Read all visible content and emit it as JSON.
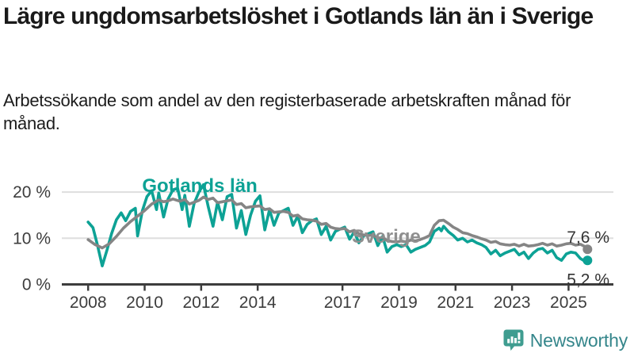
{
  "header": {
    "title": "Lägre ungdomsarbetslöshet i Gotlands län än i Sverige",
    "subtitle": "Arbetssökande som andel av den registerbaserade arbetskraften månad för månad."
  },
  "footer": {
    "brand": "Newsworthy",
    "brand_icon": "bar-chart-speech-bubble",
    "brand_icon_color": "#3f9d90",
    "brand_text_color": "#35868b"
  },
  "chart_data": {
    "type": "line",
    "title": "",
    "xlabel": "",
    "ylabel": "",
    "x_unit": "year (monthly data)",
    "y_unit": "%",
    "xlim": [
      2007.6,
      2026.3
    ],
    "ylim": [
      0,
      23
    ],
    "grid": "horizontal",
    "y_ticks": [
      {
        "value": 20,
        "label": "20 %"
      },
      {
        "value": 10,
        "label": "10 %"
      },
      {
        "value": 0,
        "label": "0 %"
      }
    ],
    "x_ticks": [
      {
        "value": 2008,
        "label": "2008"
      },
      {
        "value": 2010,
        "label": "2010"
      },
      {
        "value": 2012,
        "label": "2012"
      },
      {
        "value": 2014,
        "label": "2014"
      },
      {
        "value": 2017,
        "label": "2017"
      },
      {
        "value": 2019,
        "label": "2019"
      },
      {
        "value": 2021,
        "label": "2021"
      },
      {
        "value": 2023,
        "label": "2023"
      },
      {
        "value": 2025,
        "label": "2025"
      }
    ],
    "colors": {
      "gotland": "#0da295",
      "sverige": "#858585",
      "grid": "#dedede",
      "axis": "#3d3d3d",
      "tick_text": "#3d3d3d",
      "value_text": "#333333",
      "sverige_label": "#8f8f8f"
    },
    "annotations": [
      {
        "text": "Gotlands län",
        "x": 2011.95,
        "y": 20.0,
        "color": "#0da295",
        "bold": true
      },
      {
        "text": "Sverige",
        "x": 2018.55,
        "y": 9.0,
        "color": "#8f8f8f",
        "bold": true
      },
      {
        "text": "7,6 %",
        "x": 2026.1,
        "y": 10.2,
        "color": "#333333",
        "bold": false
      },
      {
        "text": "5,2 %",
        "x": 2026.1,
        "y": 1.0,
        "color": "#333333",
        "bold": false
      }
    ],
    "series": [
      {
        "name": "Gotlands län",
        "color": "#0da295",
        "end_label": "5,2 %",
        "end_value": 5.2,
        "points": [
          [
            2008.0,
            13.5
          ],
          [
            2008.17,
            12.3
          ],
          [
            2008.33,
            8.5
          ],
          [
            2008.5,
            4.0
          ],
          [
            2008.67,
            7.5
          ],
          [
            2008.83,
            11.0
          ],
          [
            2009.0,
            14.0
          ],
          [
            2009.17,
            15.5
          ],
          [
            2009.33,
            13.8
          ],
          [
            2009.5,
            15.8
          ],
          [
            2009.67,
            16.5
          ],
          [
            2009.75,
            10.5
          ],
          [
            2009.92,
            16.0
          ],
          [
            2010.08,
            19.0
          ],
          [
            2010.25,
            20.3
          ],
          [
            2010.42,
            16.2
          ],
          [
            2010.5,
            19.8
          ],
          [
            2010.67,
            14.6
          ],
          [
            2010.83,
            18.5
          ],
          [
            2011.0,
            20.5
          ],
          [
            2011.17,
            20.8
          ],
          [
            2011.33,
            16.2
          ],
          [
            2011.42,
            19.3
          ],
          [
            2011.58,
            12.6
          ],
          [
            2011.75,
            17.5
          ],
          [
            2011.92,
            20.0
          ],
          [
            2012.08,
            21.6
          ],
          [
            2012.25,
            16.8
          ],
          [
            2012.42,
            12.6
          ],
          [
            2012.58,
            17.8
          ],
          [
            2012.75,
            14.0
          ],
          [
            2012.92,
            19.0
          ],
          [
            2013.08,
            19.5
          ],
          [
            2013.25,
            12.2
          ],
          [
            2013.42,
            16.0
          ],
          [
            2013.58,
            10.8
          ],
          [
            2013.75,
            15.0
          ],
          [
            2013.92,
            18.0
          ],
          [
            2014.08,
            19.2
          ],
          [
            2014.25,
            11.8
          ],
          [
            2014.42,
            16.2
          ],
          [
            2014.58,
            12.8
          ],
          [
            2014.75,
            15.5
          ],
          [
            2014.92,
            16.0
          ],
          [
            2015.08,
            16.5
          ],
          [
            2015.25,
            12.8
          ],
          [
            2015.42,
            14.8
          ],
          [
            2015.58,
            11.2
          ],
          [
            2015.75,
            13.0
          ],
          [
            2015.92,
            13.8
          ],
          [
            2016.08,
            14.2
          ],
          [
            2016.25,
            10.8
          ],
          [
            2016.42,
            12.6
          ],
          [
            2016.58,
            9.6
          ],
          [
            2016.75,
            11.5
          ],
          [
            2016.92,
            12.0
          ],
          [
            2017.08,
            12.4
          ],
          [
            2017.25,
            9.8
          ],
          [
            2017.42,
            11.4
          ],
          [
            2017.58,
            9.0
          ],
          [
            2017.75,
            10.5
          ],
          [
            2017.92,
            11.0
          ],
          [
            2018.08,
            11.4
          ],
          [
            2018.25,
            8.4
          ],
          [
            2018.42,
            10.4
          ],
          [
            2018.58,
            7.0
          ],
          [
            2018.75,
            8.2
          ],
          [
            2018.92,
            8.6
          ],
          [
            2019.08,
            8.2
          ],
          [
            2019.25,
            8.6
          ],
          [
            2019.42,
            7.0
          ],
          [
            2019.58,
            7.6
          ],
          [
            2019.75,
            8.0
          ],
          [
            2019.92,
            8.4
          ],
          [
            2020.08,
            9.2
          ],
          [
            2020.25,
            11.5
          ],
          [
            2020.42,
            12.2
          ],
          [
            2020.5,
            11.6
          ],
          [
            2020.58,
            12.6
          ],
          [
            2020.75,
            11.4
          ],
          [
            2020.92,
            10.6
          ],
          [
            2021.08,
            9.6
          ],
          [
            2021.25,
            10.0
          ],
          [
            2021.42,
            9.2
          ],
          [
            2021.58,
            9.6
          ],
          [
            2021.75,
            9.0
          ],
          [
            2021.92,
            8.6
          ],
          [
            2022.08,
            8.0
          ],
          [
            2022.25,
            6.6
          ],
          [
            2022.42,
            7.4
          ],
          [
            2022.58,
            6.2
          ],
          [
            2022.75,
            6.8
          ],
          [
            2022.92,
            7.2
          ],
          [
            2023.08,
            7.6
          ],
          [
            2023.25,
            6.4
          ],
          [
            2023.42,
            7.0
          ],
          [
            2023.58,
            5.6
          ],
          [
            2023.75,
            6.8
          ],
          [
            2023.92,
            7.6
          ],
          [
            2024.08,
            7.8
          ],
          [
            2024.25,
            6.8
          ],
          [
            2024.42,
            7.4
          ],
          [
            2024.58,
            5.8
          ],
          [
            2024.75,
            5.2
          ],
          [
            2024.92,
            6.6
          ],
          [
            2025.08,
            7.0
          ],
          [
            2025.25,
            6.8
          ],
          [
            2025.42,
            5.6
          ],
          [
            2025.58,
            5.0
          ],
          [
            2025.67,
            5.2
          ]
        ]
      },
      {
        "name": "Sverige",
        "color": "#858585",
        "end_label": "7,6 %",
        "end_value": 7.6,
        "points": [
          [
            2008.0,
            9.7
          ],
          [
            2008.25,
            8.6
          ],
          [
            2008.5,
            7.9
          ],
          [
            2008.75,
            8.8
          ],
          [
            2009.0,
            10.4
          ],
          [
            2009.25,
            12.2
          ],
          [
            2009.5,
            13.6
          ],
          [
            2009.75,
            14.8
          ],
          [
            2010.0,
            16.0
          ],
          [
            2010.25,
            17.4
          ],
          [
            2010.5,
            18.3
          ],
          [
            2010.67,
            17.9
          ],
          [
            2010.83,
            18.1
          ],
          [
            2011.0,
            18.5
          ],
          [
            2011.25,
            18.0
          ],
          [
            2011.42,
            18.4
          ],
          [
            2011.58,
            17.4
          ],
          [
            2011.75,
            17.8
          ],
          [
            2011.92,
            18.2
          ],
          [
            2012.08,
            18.9
          ],
          [
            2012.25,
            18.4
          ],
          [
            2012.42,
            18.7
          ],
          [
            2012.58,
            17.7
          ],
          [
            2012.75,
            17.9
          ],
          [
            2012.92,
            18.1
          ],
          [
            2013.08,
            18.3
          ],
          [
            2013.25,
            17.3
          ],
          [
            2013.42,
            17.5
          ],
          [
            2013.58,
            16.6
          ],
          [
            2013.75,
            16.8
          ],
          [
            2013.92,
            16.9
          ],
          [
            2014.08,
            17.0
          ],
          [
            2014.25,
            16.2
          ],
          [
            2014.42,
            16.4
          ],
          [
            2014.58,
            15.6
          ],
          [
            2014.75,
            15.7
          ],
          [
            2014.92,
            15.8
          ],
          [
            2015.08,
            15.6
          ],
          [
            2015.25,
            14.8
          ],
          [
            2015.42,
            15.0
          ],
          [
            2015.58,
            14.2
          ],
          [
            2015.75,
            14.0
          ],
          [
            2015.92,
            13.9
          ],
          [
            2016.08,
            13.7
          ],
          [
            2016.25,
            13.0
          ],
          [
            2016.42,
            13.2
          ],
          [
            2016.58,
            12.4
          ],
          [
            2016.75,
            12.1
          ],
          [
            2016.92,
            12.0
          ],
          [
            2017.08,
            12.1
          ],
          [
            2017.25,
            11.4
          ],
          [
            2017.42,
            11.7
          ],
          [
            2017.58,
            11.0
          ],
          [
            2017.75,
            10.7
          ],
          [
            2017.92,
            10.6
          ],
          [
            2018.08,
            10.7
          ],
          [
            2018.25,
            10.0
          ],
          [
            2018.42,
            10.2
          ],
          [
            2018.58,
            9.5
          ],
          [
            2018.75,
            9.3
          ],
          [
            2018.92,
            9.2
          ],
          [
            2019.08,
            9.4
          ],
          [
            2019.25,
            9.2
          ],
          [
            2019.42,
            9.6
          ],
          [
            2019.58,
            9.4
          ],
          [
            2019.75,
            9.7
          ],
          [
            2019.92,
            10.1
          ],
          [
            2020.08,
            10.6
          ],
          [
            2020.25,
            12.8
          ],
          [
            2020.42,
            13.8
          ],
          [
            2020.58,
            13.9
          ],
          [
            2020.75,
            13.2
          ],
          [
            2020.92,
            12.4
          ],
          [
            2021.08,
            11.9
          ],
          [
            2021.25,
            11.2
          ],
          [
            2021.42,
            11.0
          ],
          [
            2021.58,
            10.6
          ],
          [
            2021.75,
            10.3
          ],
          [
            2021.92,
            9.9
          ],
          [
            2022.08,
            9.6
          ],
          [
            2022.25,
            9.1
          ],
          [
            2022.42,
            9.3
          ],
          [
            2022.58,
            8.8
          ],
          [
            2022.75,
            8.6
          ],
          [
            2022.92,
            8.5
          ],
          [
            2023.08,
            8.7
          ],
          [
            2023.25,
            8.3
          ],
          [
            2023.42,
            8.7
          ],
          [
            2023.58,
            8.3
          ],
          [
            2023.75,
            8.4
          ],
          [
            2023.92,
            8.6
          ],
          [
            2024.08,
            8.9
          ],
          [
            2024.25,
            8.5
          ],
          [
            2024.42,
            8.8
          ],
          [
            2024.58,
            8.3
          ],
          [
            2024.75,
            8.5
          ],
          [
            2024.92,
            8.8
          ],
          [
            2025.08,
            8.9
          ],
          [
            2025.25,
            8.5
          ],
          [
            2025.42,
            8.7
          ],
          [
            2025.58,
            8.2
          ],
          [
            2025.67,
            7.6
          ]
        ]
      }
    ]
  }
}
